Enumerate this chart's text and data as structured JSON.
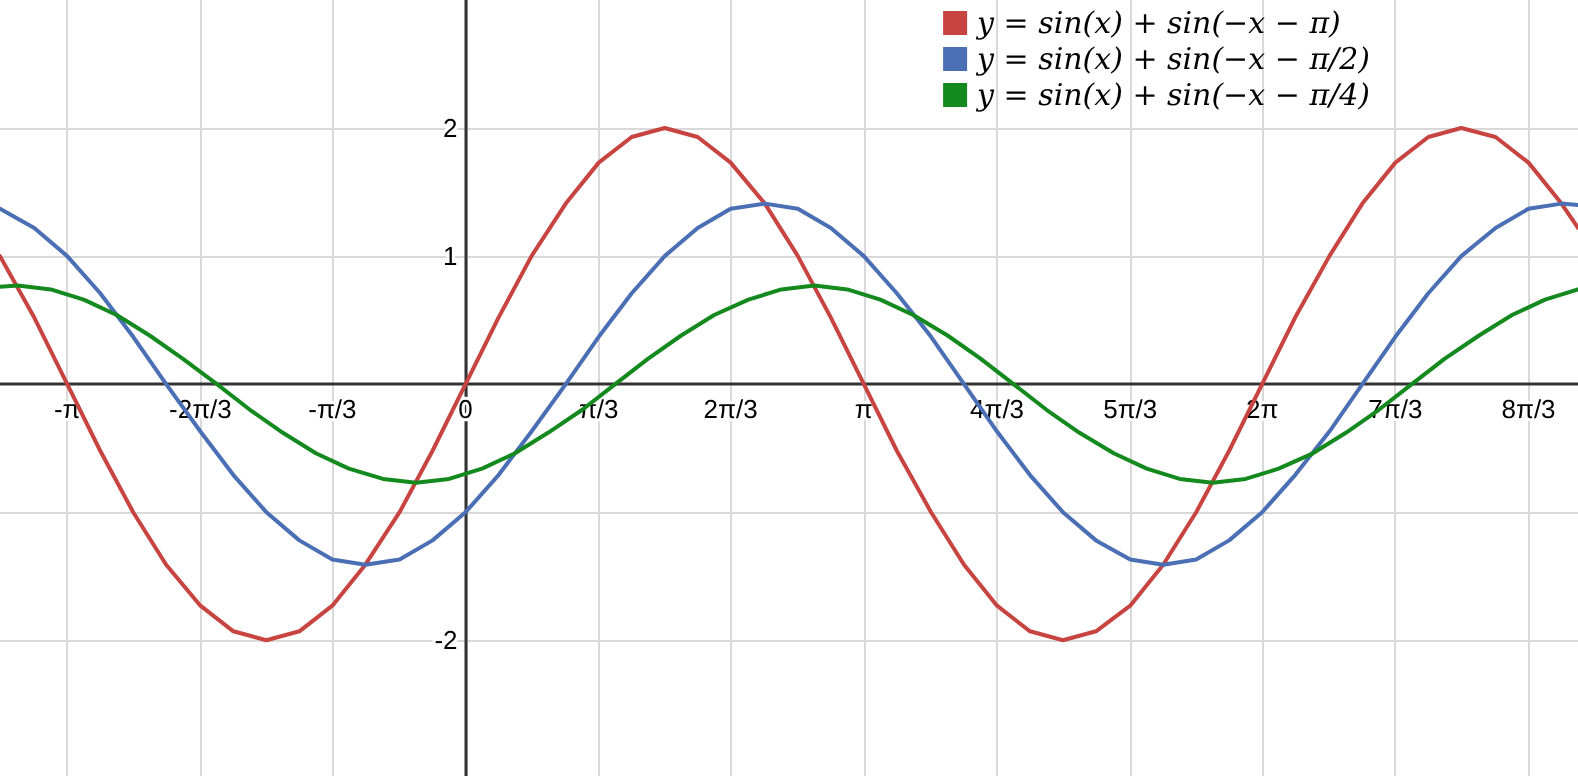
{
  "chart_data": {
    "type": "line",
    "xlim": [
      -3.67,
      8.77
    ],
    "ylim": [
      -3.06,
      3.0
    ],
    "xticks": [
      {
        "value": -3.14,
        "label": "-π"
      },
      {
        "value": -2.09,
        "label": "-2π/3"
      },
      {
        "value": -1.05,
        "label": "-π/3"
      },
      0,
      {
        "value": 1.05,
        "label": "π/3"
      },
      {
        "value": 2.09,
        "label": "2π/3"
      },
      {
        "value": 3.14,
        "label": "π"
      },
      {
        "value": 4.19,
        "label": "4π/3"
      },
      {
        "value": 5.24,
        "label": "5π/3"
      },
      {
        "value": 6.28,
        "label": "2π"
      },
      {
        "value": 7.33,
        "label": "7π/3"
      },
      {
        "value": 8.38,
        "label": "8π/3"
      }
    ],
    "yticks": [
      -2,
      {
        "value": -1,
        "label": null
      },
      1,
      2
    ],
    "grid": true,
    "legend": "top right",
    "marker": "none",
    "line_style": "solid",
    "x": [
      -3.67,
      -3.4,
      -3.14,
      -2.88,
      -2.62,
      -2.36,
      -2.09,
      -1.83,
      -1.57,
      -1.31,
      -1.05,
      -0.79,
      -0.52,
      -0.26,
      0,
      0.26,
      0.52,
      0.79,
      1.05,
      1.31,
      1.57,
      1.83,
      2.09,
      2.36,
      2.62,
      2.88,
      3.14,
      3.4,
      3.67,
      3.93,
      4.19,
      4.45,
      4.71,
      4.97,
      5.24,
      5.5,
      5.76,
      6.02,
      6.28,
      6.54,
      6.81,
      7.07,
      7.33,
      7.59,
      7.85,
      8.12,
      8.38,
      8.64,
      8.77
    ],
    "series": [
      {
        "name": "y = sin(x) + sin(−x − π)",
        "color": "#c74440",
        "values": [
          1,
          0.52,
          0,
          -0.52,
          -1,
          -1.41,
          -1.73,
          -1.93,
          -2,
          -1.93,
          -1.73,
          -1.41,
          -1,
          -0.52,
          0,
          0.52,
          1,
          1.41,
          1.73,
          1.93,
          2,
          1.93,
          1.73,
          1.41,
          1,
          0.52,
          0,
          -0.52,
          -1,
          -1.41,
          -1.73,
          -1.93,
          -2,
          -1.93,
          -1.73,
          -1.41,
          -1,
          -0.52,
          0,
          0.52,
          1,
          1.41,
          1.73,
          1.93,
          2,
          1.93,
          1.73,
          1.41,
          1.22
        ]
      },
      {
        "name": "y = sin(x) + sin(−x − π/2)",
        "color": "#4a6fb5",
        "values": [
          1.37,
          1.22,
          1,
          0.71,
          0.37,
          0,
          -0.37,
          -0.71,
          -1,
          -1.22,
          -1.37,
          -1.41,
          -1.37,
          -1.22,
          -1,
          -0.71,
          -0.37,
          0,
          0.37,
          0.71,
          1,
          1.22,
          1.37,
          1.41,
          1.37,
          1.22,
          1,
          0.71,
          0.37,
          0,
          -0.37,
          -0.71,
          -1,
          -1.22,
          -1.37,
          -1.41,
          -1.37,
          -1.22,
          -1,
          -0.71,
          -0.37,
          0,
          0.37,
          0.71,
          1,
          1.22,
          1.37,
          1.41,
          1.4
        ]
      },
      {
        "name": "y = sin(x) + sin(−x − π/4)",
        "color": "#14891e",
        "x": [
          -3.67,
          -3.53,
          -3.27,
          -3.01,
          -2.75,
          -2.49,
          -2.23,
          -1.96,
          -1.7,
          -1.44,
          -1.18,
          -0.92,
          -0.65,
          -0.39,
          -0.13,
          0.13,
          0.39,
          0.65,
          0.92,
          1.18,
          1.44,
          1.7,
          1.96,
          2.23,
          2.49,
          2.75,
          3.01,
          3.27,
          3.53,
          3.8,
          4.06,
          4.32,
          4.58,
          4.84,
          5.11,
          5.37,
          5.63,
          5.89,
          6.15,
          6.41,
          6.68,
          6.94,
          7.2,
          7.46,
          7.72,
          7.99,
          8.25,
          8.51,
          8.77
        ],
        "values": [
          0.76,
          0.77,
          0.74,
          0.66,
          0.54,
          0.38,
          0.2,
          0,
          -0.2,
          -0.38,
          -0.54,
          -0.66,
          -0.74,
          -0.77,
          -0.74,
          -0.66,
          -0.54,
          -0.38,
          -0.2,
          0,
          0.2,
          0.38,
          0.54,
          0.66,
          0.74,
          0.77,
          0.74,
          0.66,
          0.54,
          0.38,
          0.2,
          0,
          -0.2,
          -0.38,
          -0.54,
          -0.66,
          -0.74,
          -0.77,
          -0.74,
          -0.66,
          -0.54,
          -0.38,
          -0.2,
          0,
          0.2,
          0.38,
          0.54,
          0.66,
          0.74
        ]
      }
    ]
  }
}
